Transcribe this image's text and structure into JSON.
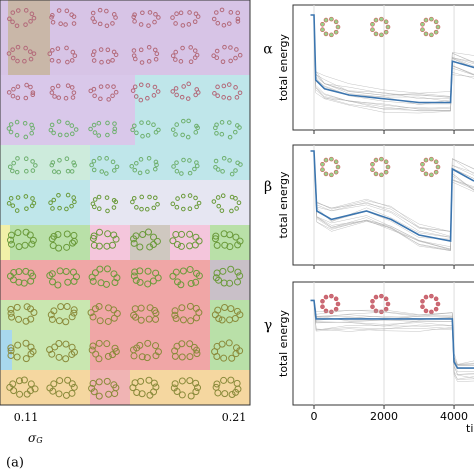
{
  "left_panel": {
    "xticks": [
      "0.11",
      "0.21"
    ],
    "xlabel": "σ",
    "xlabel_sub": "G",
    "caption": "(a)"
  },
  "chart_data": [
    {
      "type": "line",
      "panel_label": "α",
      "ylabel": "total energy",
      "xlim": [
        -600,
        4570
      ],
      "ylim": [
        0,
        1
      ],
      "xticks": [
        0,
        2000,
        4000
      ],
      "series": [
        {
          "color": "#3b75af",
          "x": [
            -100,
            0,
            50,
            300,
            1000,
            2000,
            3000,
            3900,
            3950,
            4570
          ],
          "values": [
            0.92,
            0.92,
            0.4,
            0.33,
            0.28,
            0.25,
            0.22,
            0.22,
            0.55,
            0.5
          ]
        }
      ]
    },
    {
      "type": "line",
      "panel_label": "β",
      "ylabel": "total energy",
      "xlim": [
        -600,
        4570
      ],
      "ylim": [
        0,
        1
      ],
      "xticks": [
        0,
        2000,
        4000
      ],
      "series": [
        {
          "color": "#3b75af",
          "x": [
            -100,
            0,
            80,
            500,
            1500,
            2200,
            3000,
            3900,
            3950,
            4570
          ],
          "values": [
            0.95,
            0.95,
            0.45,
            0.38,
            0.45,
            0.38,
            0.25,
            0.2,
            0.8,
            0.7
          ]
        }
      ]
    },
    {
      "type": "line",
      "panel_label": "γ",
      "ylabel": "total energy",
      "xlabel": "ti",
      "xlim": [
        -600,
        4570
      ],
      "ylim": [
        0,
        1
      ],
      "xticks": [
        0,
        2000,
        4000
      ],
      "series": [
        {
          "color": "#3b75af",
          "x": [
            -100,
            0,
            60,
            1000,
            2000,
            3000,
            3950,
            4000,
            4100,
            4570
          ],
          "values": [
            0.85,
            0.85,
            0.7,
            0.7,
            0.7,
            0.7,
            0.7,
            0.35,
            0.3,
            0.3
          ]
        }
      ]
    }
  ]
}
